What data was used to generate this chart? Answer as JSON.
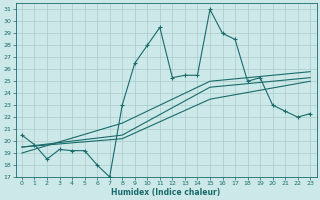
{
  "xlabel": "Humidex (Indice chaleur)",
  "bg_color": "#cce8e8",
  "grid_color": "#aacccc",
  "line_color": "#1a6b6b",
  "xlim": [
    -0.5,
    23.5
  ],
  "ylim": [
    17,
    31.5
  ],
  "xticks": [
    0,
    1,
    2,
    3,
    4,
    5,
    6,
    7,
    8,
    9,
    10,
    11,
    12,
    13,
    14,
    15,
    16,
    17,
    18,
    19,
    20,
    21,
    22,
    23
  ],
  "yticks": [
    17,
    18,
    19,
    20,
    21,
    22,
    23,
    24,
    25,
    26,
    27,
    28,
    29,
    30,
    31
  ],
  "main_line_x": [
    0,
    1,
    2,
    3,
    4,
    5,
    6,
    7,
    8,
    9,
    10,
    11,
    12,
    13,
    14,
    15,
    16,
    17,
    18,
    19,
    20,
    21,
    22,
    23
  ],
  "main_line_y": [
    20.5,
    19.7,
    18.5,
    19.3,
    19.2,
    19.2,
    18.0,
    17.0,
    23.0,
    26.5,
    28.0,
    29.5,
    25.3,
    25.5,
    25.5,
    31.0,
    29.0,
    28.5,
    25.0,
    25.3,
    23.0,
    22.5,
    22.0,
    22.3
  ],
  "trend1_x": [
    0,
    8,
    15,
    23
  ],
  "trend1_y": [
    19.5,
    20.2,
    23.5,
    25.0
  ],
  "trend2_x": [
    0,
    8,
    15,
    23
  ],
  "trend2_y": [
    19.5,
    20.5,
    24.5,
    25.3
  ],
  "trend3_x": [
    0,
    8,
    15,
    23
  ],
  "trend3_y": [
    19.0,
    21.5,
    25.0,
    25.8
  ]
}
